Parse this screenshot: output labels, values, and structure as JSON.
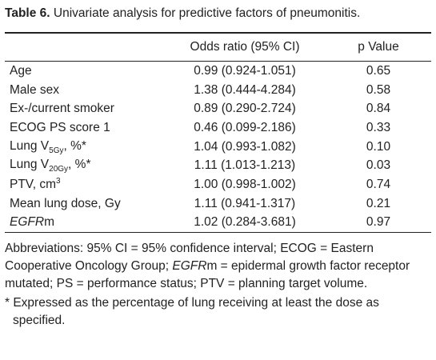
{
  "title": {
    "number": "Table 6.",
    "text": "Univariate analysis for predictive factors of pneumonitis."
  },
  "table": {
    "header": [
      "Odds ratio (95% CI)",
      "p Value"
    ],
    "rows": [
      {
        "label": [
          "Age"
        ],
        "or": "0.99 (0.924-1.051)",
        "p": "0.65"
      },
      {
        "label": [
          "Male sex"
        ],
        "or": "1.38 (0.444-4.284)",
        "p": "0.58"
      },
      {
        "label": [
          "Ex-/current smoker"
        ],
        "or": "0.89 (0.290-2.724)",
        "p": "0.84"
      },
      {
        "label": [
          "ECOG PS score 1"
        ],
        "or": "0.46 (0.099-2.186)",
        "p": "0.33"
      },
      {
        "label": [
          "Lung V",
          "5Gy",
          ", %*"
        ],
        "or": "1.04 (0.993-1.082)",
        "p": "0.10"
      },
      {
        "label": [
          "Lung V",
          "20Gy",
          ", %*"
        ],
        "or": "1.11 (1.013-1.213)",
        "p": "0.03"
      },
      {
        "label": [
          "PTV, cm",
          "3"
        ],
        "or": "1.00 (0.998-1.002)",
        "p": "0.74"
      },
      {
        "label": [
          "Mean lung dose, Gy"
        ],
        "or": "1.11 (0.941-1.317)",
        "p": "0.21"
      },
      {
        "label": [
          "EGFR",
          "m"
        ],
        "or": "1.02 (0.284-3.681)",
        "p": "0.97"
      }
    ]
  },
  "footnotes": {
    "abbreviations": [
      "Abbreviations: 95% CI = 95% confidence interval; ECOG = Eastern Cooperative Oncology Group; ",
      "EGFR",
      "m = epidermal growth factor receptor mutated; PS = performance status; PTV = planning target volume."
    ],
    "asterisk": "* Expressed as the percentage of lung receiving at least the dose as specified."
  }
}
